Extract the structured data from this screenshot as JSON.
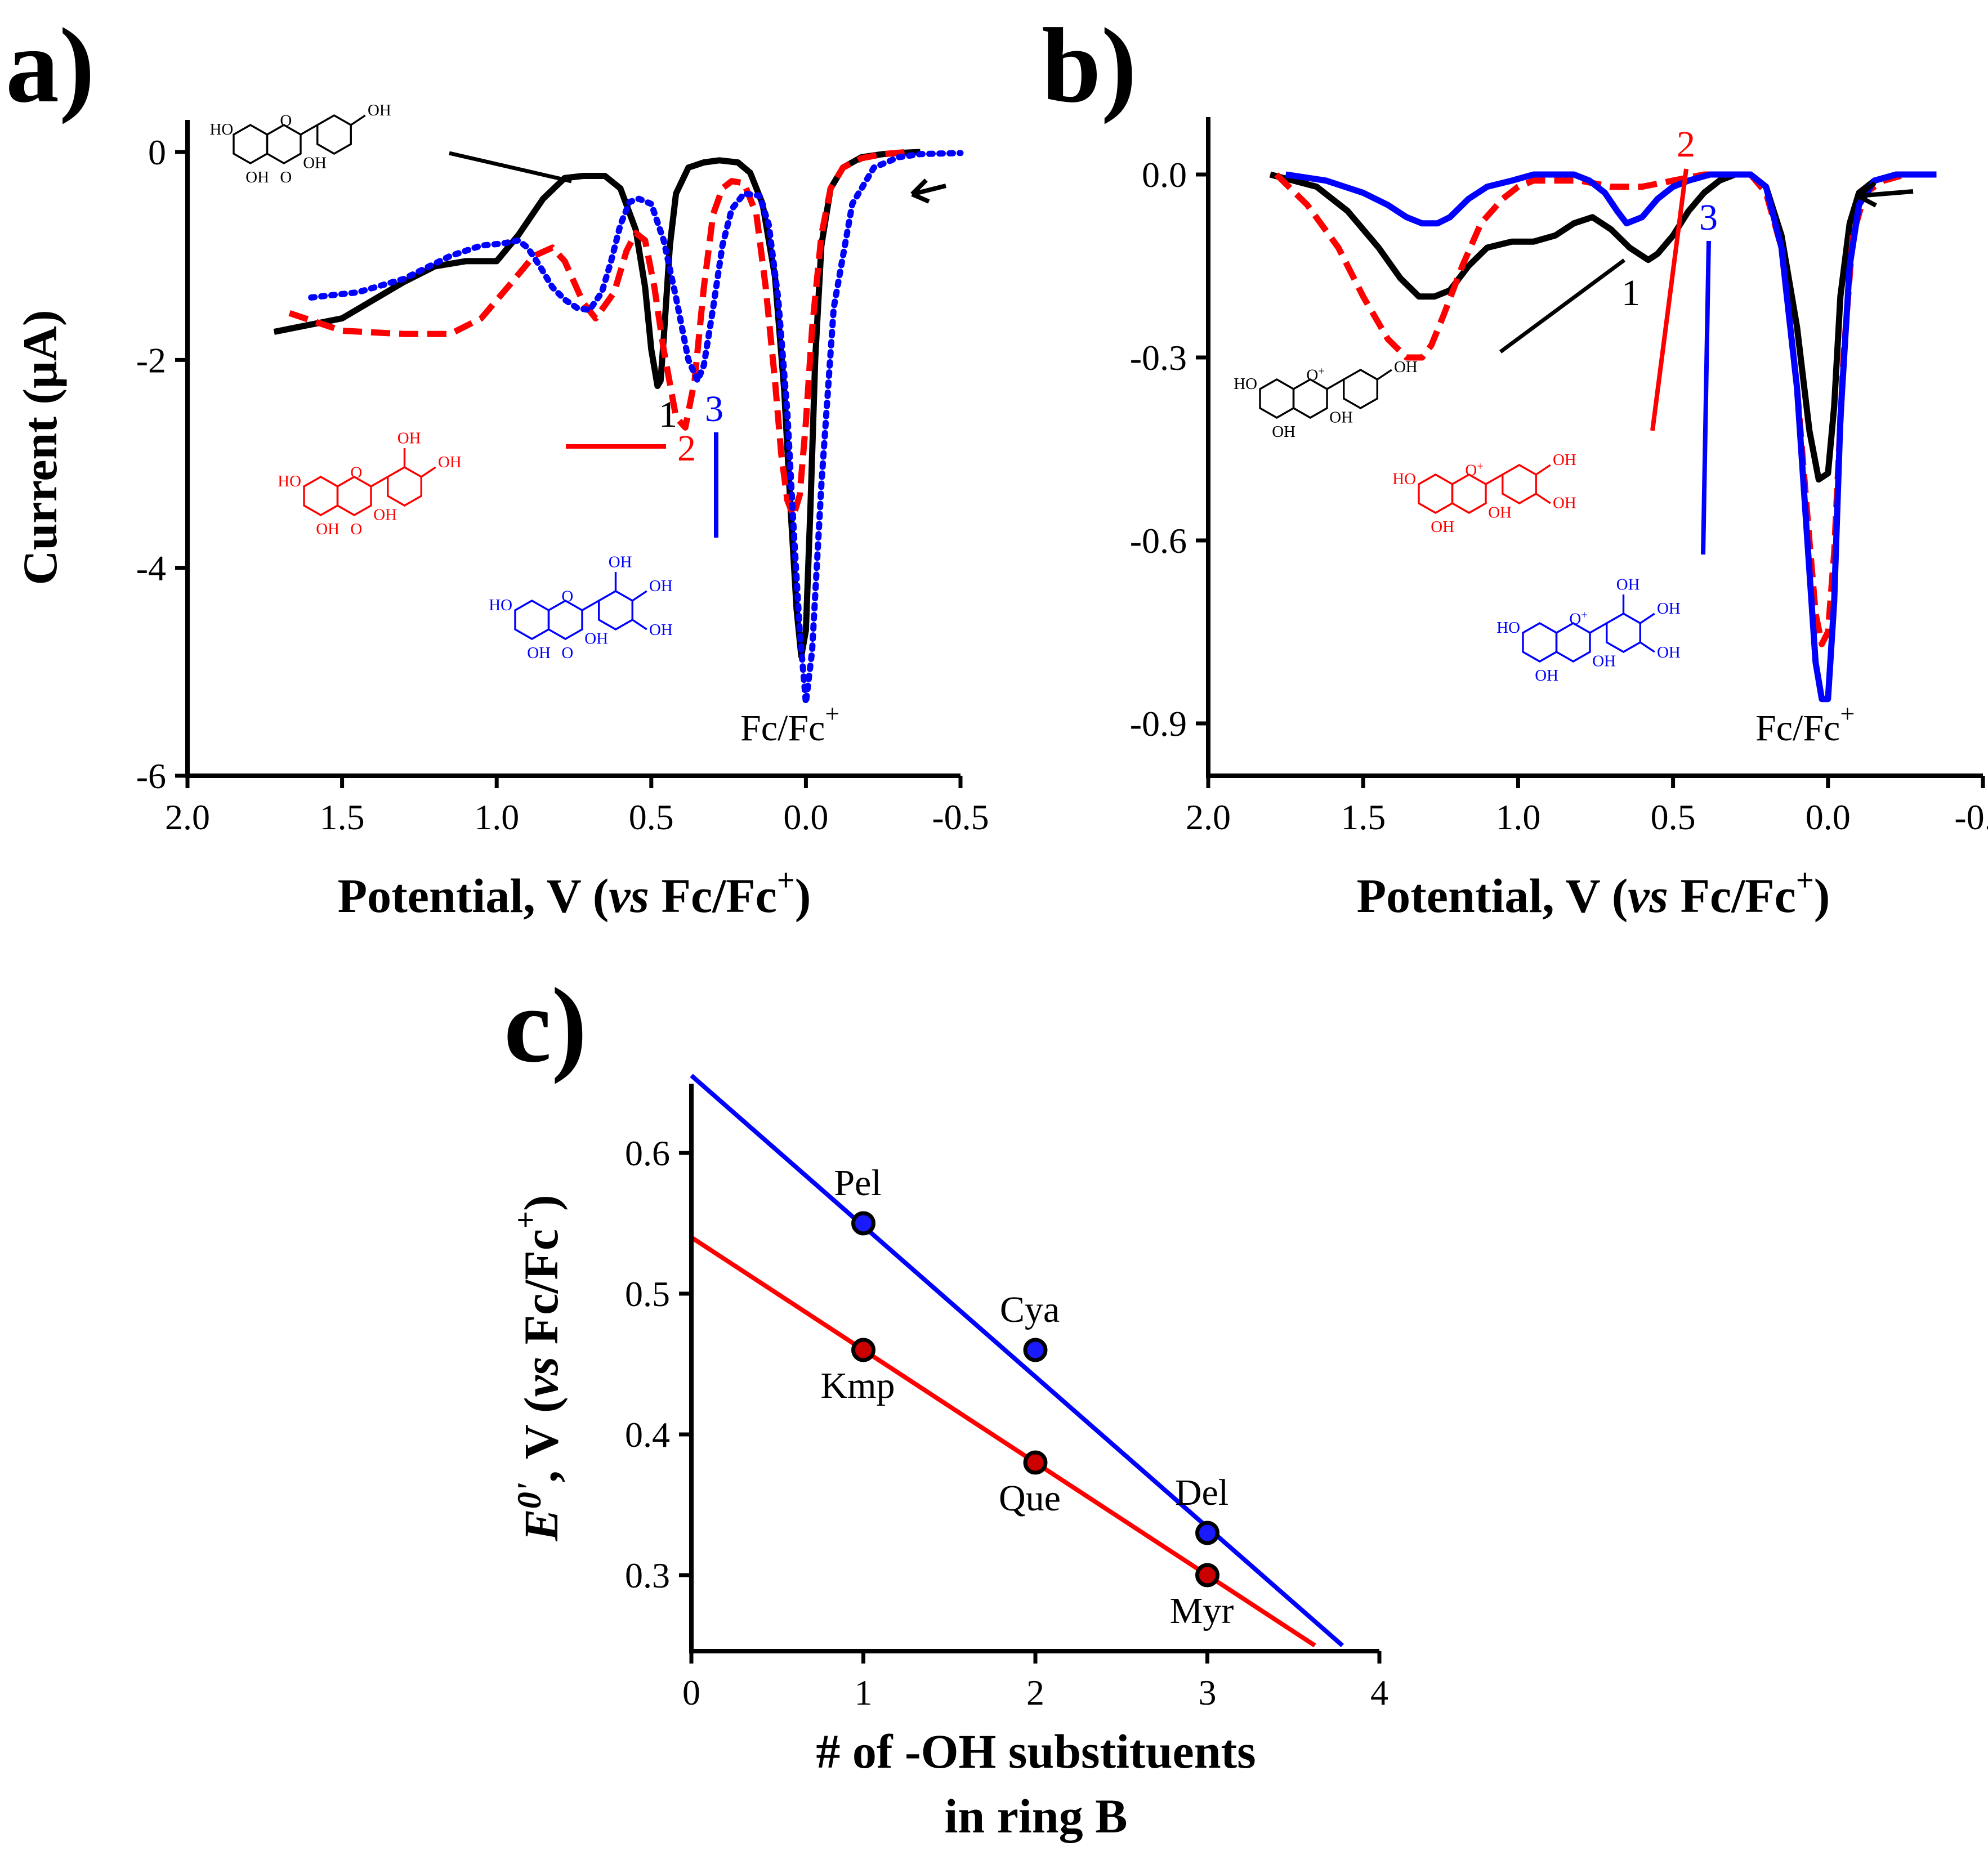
{
  "colors": {
    "black": "#000000",
    "red": "#ff0000",
    "blue": "#0000ff"
  },
  "chart_data": [
    {
      "panel": "a)",
      "type": "line",
      "xlabel_parts": [
        "Potential, V (",
        "vs",
        " Fc/Fc",
        "+",
        ")"
      ],
      "ylabel": "Current (μA)",
      "xlim": [
        2.0,
        -0.5
      ],
      "ylim": [
        -6,
        0
      ],
      "xticks": [
        "2.0",
        "1.5",
        "1.0",
        "0.5",
        "0.0",
        "-0.5"
      ],
      "xtick_values": [
        2.0,
        1.5,
        1.0,
        0.5,
        0.0,
        -0.5
      ],
      "yticks": [
        "0",
        "-2",
        "-4",
        "-6"
      ],
      "ytick_values": [
        0,
        -2,
        -4,
        -6
      ],
      "annotations": [
        "1",
        "2",
        "3",
        "Fc/Fc",
        "+"
      ],
      "series": [
        {
          "name": "1",
          "color": "#000000",
          "style": "solid",
          "x": [
            1.72,
            1.5,
            1.3,
            1.2,
            1.1,
            1.0,
            0.93,
            0.85,
            0.78,
            0.72,
            0.65,
            0.6,
            0.55,
            0.52,
            0.5,
            0.48,
            0.47,
            0.46,
            0.44,
            0.42,
            0.38,
            0.33,
            0.28,
            0.22,
            0.18,
            0.14,
            0.1,
            0.07,
            0.05,
            0.03,
            0.015,
            0.0,
            -0.015,
            -0.03,
            -0.05,
            -0.08,
            -0.12,
            -0.18,
            -0.25,
            -0.3,
            -0.37
          ],
          "y": [
            -1.73,
            -1.6,
            -1.25,
            -1.1,
            -1.05,
            -1.05,
            -0.8,
            -0.45,
            -0.25,
            -0.23,
            -0.23,
            -0.35,
            -0.75,
            -1.3,
            -1.9,
            -2.25,
            -2.2,
            -1.8,
            -0.9,
            -0.4,
            -0.15,
            -0.1,
            -0.08,
            -0.1,
            -0.2,
            -0.5,
            -1.2,
            -2.3,
            -3.4,
            -4.4,
            -4.85,
            -4.6,
            -3.4,
            -2.0,
            -0.9,
            -0.35,
            -0.15,
            -0.05,
            -0.02,
            -0.01,
            0.0
          ]
        },
        {
          "name": "2",
          "color": "#ff0000",
          "style": "dashed",
          "x": [
            1.67,
            1.5,
            1.3,
            1.15,
            1.05,
            0.95,
            0.88,
            0.82,
            0.78,
            0.72,
            0.68,
            0.62,
            0.58,
            0.55,
            0.52,
            0.49,
            0.46,
            0.42,
            0.39,
            0.36,
            0.33,
            0.3,
            0.27,
            0.24,
            0.2,
            0.16,
            0.13,
            0.1,
            0.08,
            0.06,
            0.04,
            0.02,
            0.0,
            -0.02,
            -0.05,
            -0.08,
            -0.12,
            -0.18,
            -0.25,
            -0.33
          ],
          "y": [
            -1.55,
            -1.72,
            -1.75,
            -1.75,
            -1.6,
            -1.25,
            -1.0,
            -0.92,
            -1.05,
            -1.45,
            -1.6,
            -1.35,
            -0.95,
            -0.78,
            -0.85,
            -1.3,
            -1.9,
            -2.55,
            -2.65,
            -2.2,
            -1.3,
            -0.6,
            -0.35,
            -0.28,
            -0.3,
            -0.6,
            -1.3,
            -2.2,
            -2.9,
            -3.35,
            -3.5,
            -3.3,
            -2.6,
            -1.7,
            -0.8,
            -0.35,
            -0.15,
            -0.06,
            -0.02,
            0.0
          ]
        },
        {
          "name": "3",
          "color": "#0000ff",
          "style": "dotted",
          "x": [
            1.6,
            1.45,
            1.3,
            1.15,
            1.05,
            0.98,
            0.93,
            0.9,
            0.86,
            0.82,
            0.78,
            0.74,
            0.7,
            0.66,
            0.63,
            0.6,
            0.57,
            0.54,
            0.5,
            0.46,
            0.42,
            0.38,
            0.35,
            0.33,
            0.3,
            0.27,
            0.24,
            0.2,
            0.15,
            0.12,
            0.09,
            0.06,
            0.04,
            0.02,
            0.0,
            -0.02,
            -0.05,
            -0.09,
            -0.15,
            -0.22,
            -0.3,
            -0.37,
            -0.5
          ],
          "y": [
            -1.4,
            -1.35,
            -1.22,
            -1.0,
            -0.9,
            -0.88,
            -0.85,
            -0.92,
            -1.1,
            -1.3,
            -1.42,
            -1.5,
            -1.52,
            -1.35,
            -1.05,
            -0.7,
            -0.48,
            -0.45,
            -0.5,
            -0.85,
            -1.4,
            -2.0,
            -2.2,
            -2.05,
            -1.5,
            -0.9,
            -0.55,
            -0.4,
            -0.42,
            -0.7,
            -1.4,
            -2.5,
            -3.6,
            -4.6,
            -5.3,
            -4.8,
            -3.2,
            -1.5,
            -0.5,
            -0.15,
            -0.05,
            -0.02,
            -0.01
          ]
        }
      ]
    },
    {
      "panel": "b)",
      "type": "line",
      "xlabel_parts": [
        "Potential, V (",
        "vs",
        " Fc/Fc",
        "+",
        ")"
      ],
      "ylabel": "",
      "xlim": [
        2.0,
        -0.5
      ],
      "ylim": [
        -1.0,
        0.05
      ],
      "xticks": [
        "2.0",
        "1.5",
        "1.0",
        "0.5",
        "0.0",
        "-0.5"
      ],
      "xtick_values": [
        2.0,
        1.5,
        1.0,
        0.5,
        0.0,
        -0.5
      ],
      "yticks": [
        "0.0",
        "-0.3",
        "-0.6",
        "-0.9"
      ],
      "ytick_values": [
        0.0,
        -0.3,
        -0.6,
        -0.9
      ],
      "annotations": [
        "1",
        "2",
        "3",
        "Fc/Fc",
        "+"
      ],
      "series": [
        {
          "name": "1",
          "color": "#000000",
          "style": "solid",
          "x": [
            1.8,
            1.65,
            1.55,
            1.45,
            1.38,
            1.32,
            1.27,
            1.22,
            1.16,
            1.1,
            1.02,
            0.95,
            0.88,
            0.82,
            0.76,
            0.7,
            0.64,
            0.58,
            0.55,
            0.5,
            0.45,
            0.4,
            0.35,
            0.3,
            0.25,
            0.2,
            0.15,
            0.1,
            0.06,
            0.03,
            0.0,
            -0.02,
            -0.04,
            -0.07,
            -0.1,
            -0.15,
            -0.22,
            -0.3,
            -0.35
          ],
          "y": [
            0.0,
            -0.02,
            -0.06,
            -0.12,
            -0.17,
            -0.2,
            -0.2,
            -0.19,
            -0.15,
            -0.12,
            -0.11,
            -0.11,
            -0.1,
            -0.08,
            -0.07,
            -0.09,
            -0.12,
            -0.14,
            -0.13,
            -0.1,
            -0.06,
            -0.03,
            -0.01,
            0.0,
            0.0,
            -0.02,
            -0.1,
            -0.25,
            -0.42,
            -0.5,
            -0.49,
            -0.38,
            -0.2,
            -0.08,
            -0.03,
            -0.01,
            0.0,
            0.0,
            0.0
          ]
        },
        {
          "name": "2",
          "color": "#ff0000",
          "style": "dashed",
          "x": [
            1.78,
            1.68,
            1.58,
            1.5,
            1.42,
            1.36,
            1.31,
            1.28,
            1.24,
            1.18,
            1.12,
            1.05,
            1.0,
            0.95,
            0.9,
            0.8,
            0.7,
            0.6,
            0.5,
            0.4,
            0.3,
            0.25,
            0.2,
            0.15,
            0.1,
            0.06,
            0.04,
            0.02,
            0.0,
            -0.02,
            -0.05,
            -0.08,
            -0.12,
            -0.18,
            -0.25,
            -0.33
          ],
          "y": [
            0.0,
            -0.05,
            -0.12,
            -0.2,
            -0.27,
            -0.3,
            -0.3,
            -0.28,
            -0.23,
            -0.15,
            -0.08,
            -0.04,
            -0.02,
            -0.01,
            -0.01,
            -0.01,
            -0.02,
            -0.02,
            -0.01,
            0.0,
            0.0,
            0.0,
            -0.03,
            -0.12,
            -0.35,
            -0.6,
            -0.72,
            -0.77,
            -0.75,
            -0.62,
            -0.3,
            -0.1,
            -0.03,
            -0.01,
            0.0,
            0.0
          ]
        },
        {
          "name": "3",
          "color": "#0000ff",
          "style": "solid",
          "x": [
            1.75,
            1.62,
            1.5,
            1.42,
            1.36,
            1.31,
            1.26,
            1.22,
            1.16,
            1.1,
            1.02,
            0.95,
            0.88,
            0.82,
            0.77,
            0.72,
            0.68,
            0.65,
            0.6,
            0.55,
            0.5,
            0.45,
            0.38,
            0.3,
            0.25,
            0.2,
            0.15,
            0.1,
            0.06,
            0.04,
            0.02,
            0.0,
            -0.02,
            -0.04,
            -0.07,
            -0.1,
            -0.15,
            -0.22,
            -0.3,
            -0.35
          ],
          "y": [
            0.0,
            -0.01,
            -0.03,
            -0.05,
            -0.07,
            -0.08,
            -0.08,
            -0.07,
            -0.04,
            -0.02,
            -0.01,
            0.0,
            0.0,
            0.0,
            -0.01,
            -0.03,
            -0.06,
            -0.08,
            -0.07,
            -0.04,
            -0.02,
            -0.01,
            0.0,
            0.0,
            0.0,
            -0.02,
            -0.12,
            -0.35,
            -0.65,
            -0.8,
            -0.86,
            -0.86,
            -0.7,
            -0.4,
            -0.15,
            -0.05,
            -0.01,
            0.0,
            0.0,
            0.0
          ]
        }
      ]
    },
    {
      "panel": "c)",
      "type": "scatter",
      "xlabel_lines": [
        "# of -OH substituents",
        "in ring B"
      ],
      "ylabel_parts": [
        "E",
        "0'",
        ", V (",
        "vs",
        " Fc/Fc",
        "+",
        ")"
      ],
      "xlim": [
        0,
        4
      ],
      "ylim": [
        0.25,
        0.65
      ],
      "xticks": [
        "0",
        "1",
        "2",
        "3",
        "4"
      ],
      "xtick_values": [
        0,
        1,
        2,
        3,
        4
      ],
      "yticks": [
        "0.3",
        "0.4",
        "0.5",
        "0.6"
      ],
      "ytick_values": [
        0.3,
        0.4,
        0.5,
        0.6
      ],
      "series": [
        {
          "name": "anthocyanidins",
          "color": "#0000ff",
          "points": [
            {
              "x": 1,
              "y": 0.55,
              "label": "Pel"
            },
            {
              "x": 2,
              "y": 0.46,
              "label": "Cya"
            },
            {
              "x": 3,
              "y": 0.33,
              "label": "Del"
            }
          ],
          "fit": {
            "intercept": 0.655,
            "slope": -0.107
          }
        },
        {
          "name": "flavonols",
          "color": "#ff0000",
          "points": [
            {
              "x": 1,
              "y": 0.46,
              "label": "Kmp"
            },
            {
              "x": 2,
              "y": 0.38,
              "label": "Que"
            },
            {
              "x": 3,
              "y": 0.3,
              "label": "Myr"
            }
          ],
          "fit": {
            "intercept": 0.54,
            "slope": -0.08
          }
        }
      ]
    }
  ],
  "structures": {
    "a_kmp": {
      "oh": [
        "HO",
        "OH",
        "OH",
        "OH"
      ],
      "o": [
        "O",
        "O"
      ]
    },
    "a_que": {
      "oh": [
        "OH",
        "OH",
        "HO",
        "OH",
        "OH"
      ],
      "o": [
        "O",
        "O"
      ]
    },
    "a_myr": {
      "oh": [
        "OH",
        "OH",
        "OH",
        "HO",
        "OH",
        "OH"
      ],
      "o": [
        "O",
        "O"
      ]
    },
    "b_pel": {
      "oh": [
        "OH",
        "HO",
        "OH",
        "OH"
      ],
      "o": [
        "O",
        "+"
      ]
    },
    "b_cya": {
      "oh": [
        "OH",
        "OH",
        "HO",
        "OH",
        "OH"
      ],
      "o": [
        "O",
        "+"
      ]
    },
    "b_del": {
      "oh": [
        "OH",
        "OH",
        "OH",
        "HO",
        "OH",
        "OH"
      ],
      "o": [
        "O",
        "+"
      ]
    }
  }
}
